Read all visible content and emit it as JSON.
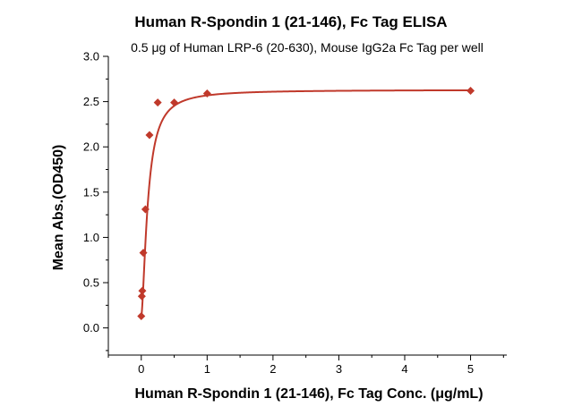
{
  "chart_data": {
    "type": "scatter",
    "title": "Human R-Spondin 1 (21-146), Fc Tag ELISA",
    "subtitle": "0.5 μg of Human LRP-6 (20-630), Mouse IgG2a Fc Tag per well",
    "xlabel": "Human R-Spondin 1 (21-146), Fc Tag Conc. (μg/mL)",
    "ylabel": "Mean Abs.(OD450)",
    "xlim": [
      -0.5,
      5.55
    ],
    "ylim": [
      -0.3,
      3.0
    ],
    "x_ticks": [
      0,
      1,
      2,
      3,
      4,
      5
    ],
    "x_tick_labels": [
      "0",
      "1",
      "2",
      "3",
      "4",
      "5"
    ],
    "y_ticks": [
      0.0,
      0.5,
      1.0,
      1.5,
      2.0,
      2.5,
      3.0
    ],
    "y_tick_labels": [
      "0.0",
      "0.5",
      "1.0",
      "1.5",
      "2.0",
      "2.5",
      "3.0"
    ],
    "grid": false,
    "color": "#c0392b",
    "marker": "diamond",
    "series": [
      {
        "x": [
          0.0,
          0.008,
          0.016,
          0.031,
          0.063,
          0.125,
          0.25,
          0.5,
          1.0,
          5.0
        ],
        "y": [
          0.13,
          0.35,
          0.41,
          0.83,
          1.31,
          2.13,
          2.49,
          2.49,
          2.59,
          2.62
        ]
      }
    ],
    "fit": {
      "type": "4PL",
      "bottom": 0.13,
      "top": 2.63,
      "ec50": 0.1,
      "hill": 1.6
    }
  }
}
